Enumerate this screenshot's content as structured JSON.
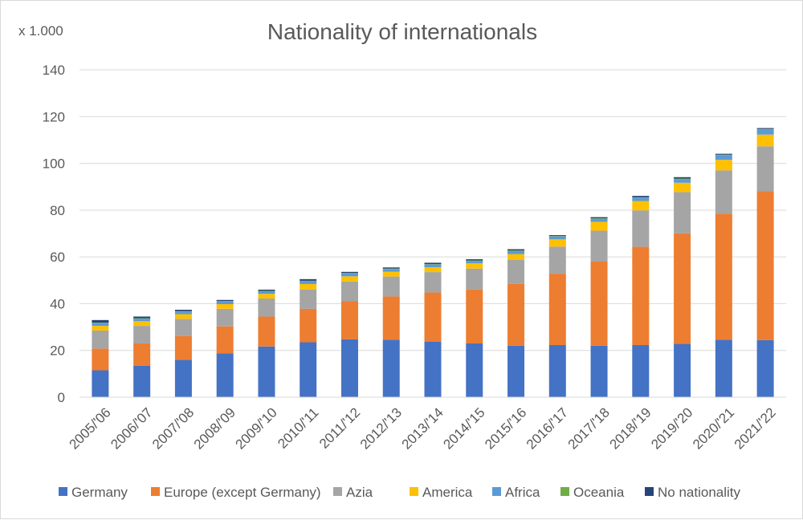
{
  "chart_data": {
    "type": "bar",
    "stacked": true,
    "title": "Nationality of internationals",
    "unit_label": "x 1.000",
    "xlabel": "",
    "ylabel": "",
    "ylim": [
      0,
      140
    ],
    "yticks": [
      0,
      20,
      40,
      60,
      80,
      100,
      120,
      140
    ],
    "grid": true,
    "legend_position": "bottom",
    "categories": [
      "2005/'06",
      "2006/'07",
      "2007/'08",
      "2008/'09",
      "2009/'10",
      "2010/'11",
      "2011/'12",
      "2012/'13",
      "2013/'14",
      "2014/'15",
      "2015/'16",
      "2016/'17",
      "2017/'18",
      "2018/'19",
      "2019/'20",
      "2020/'21",
      "2021/'22"
    ],
    "series": [
      {
        "name": "Germany",
        "color": "#4472c4",
        "values": [
          11.5,
          13.5,
          16,
          18.8,
          21.7,
          23.5,
          24.8,
          24.6,
          23.8,
          23,
          22,
          22.3,
          22,
          22.3,
          22.8,
          24.6,
          24.4
        ]
      },
      {
        "name": "Europe (except Germany)",
        "color": "#ed7d31",
        "values": [
          9.3,
          9.5,
          10.2,
          11.5,
          12.8,
          14.3,
          16.2,
          18.5,
          21,
          23.1,
          26.5,
          30.5,
          36,
          42,
          47.3,
          53.9,
          63.6
        ]
      },
      {
        "name": "Azia",
        "color": "#a5a5a5",
        "values": [
          7.7,
          7.5,
          7.3,
          7.5,
          7.7,
          8.3,
          8.5,
          8.5,
          8.7,
          8.9,
          10.3,
          11.6,
          13.2,
          15.6,
          17.6,
          18.5,
          19.3
        ]
      },
      {
        "name": "America",
        "color": "#ffc000",
        "values": [
          2,
          2,
          2,
          2,
          2,
          2.3,
          2.2,
          2.1,
          2.1,
          2.3,
          2.4,
          3.1,
          3.8,
          4,
          4,
          4.5,
          5
        ]
      },
      {
        "name": "Africa",
        "color": "#5b9bd5",
        "values": [
          1.2,
          1.1,
          1.1,
          1.1,
          1.1,
          1.2,
          1.2,
          1.1,
          1.1,
          1,
          1.3,
          1.2,
          1.3,
          1.4,
          1.6,
          2,
          2.2
        ]
      },
      {
        "name": "Oceania",
        "color": "#70ad47",
        "values": [
          0.2,
          0.2,
          0.2,
          0.2,
          0.2,
          0.2,
          0.2,
          0.2,
          0.2,
          0.2,
          0.2,
          0.2,
          0.2,
          0.2,
          0.2,
          0.2,
          0.2
        ]
      },
      {
        "name": "No nationality",
        "color": "#264478",
        "values": [
          1.1,
          0.7,
          0.6,
          0.5,
          0.5,
          0.7,
          0.5,
          0.5,
          0.6,
          0.5,
          0.6,
          0.4,
          0.5,
          0.6,
          0.6,
          0.4,
          0.4
        ]
      }
    ]
  }
}
